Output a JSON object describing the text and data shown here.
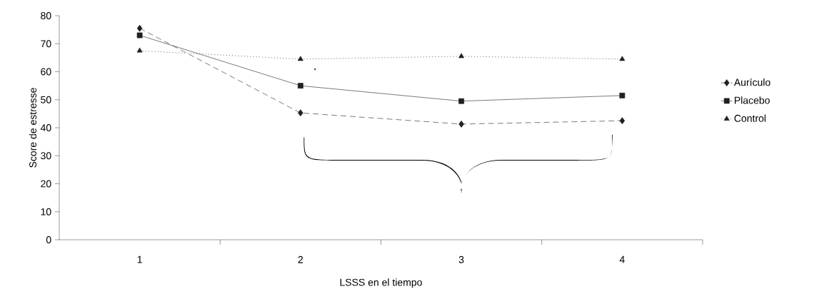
{
  "chart_data": {
    "type": "line",
    "xlabel": "LSSS en el tiempo",
    "ylabel": "Score de estresse",
    "categories": [
      "1",
      "2",
      "3",
      "4"
    ],
    "series": [
      {
        "name": "Aurículo",
        "color": "#231f20",
        "marker": "diamond",
        "line_style": "dashed",
        "values": [
          75.5,
          45.3,
          41.3,
          42.5
        ]
      },
      {
        "name": "Placebo",
        "color": "#231f20",
        "marker": "square",
        "line_style": "solid",
        "values": [
          73,
          55,
          49.5,
          51.5
        ]
      },
      {
        "name": "Control",
        "color": "#231f20",
        "marker": "triangle",
        "line_style": "dotted",
        "values": [
          67.5,
          64.5,
          65.5,
          64.5
        ]
      }
    ],
    "ylim": [
      0,
      80
    ],
    "yticks": [
      0,
      10,
      20,
      30,
      40,
      50,
      60,
      70,
      80
    ],
    "legend": "right",
    "grid": false,
    "annotations": [
      "*",
      "†"
    ]
  }
}
